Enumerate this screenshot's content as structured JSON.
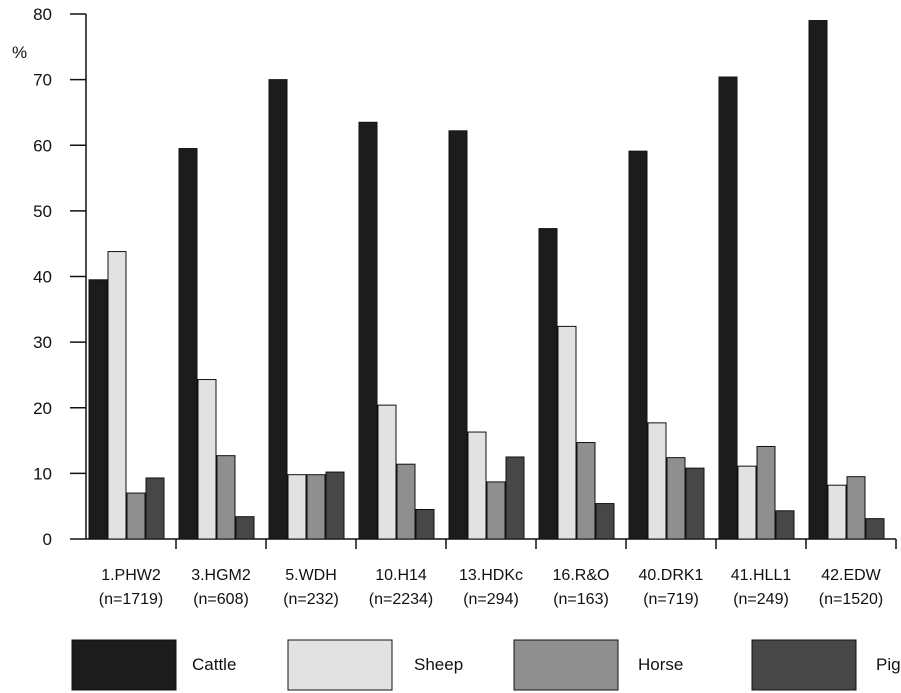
{
  "chart_data": {
    "type": "bar",
    "ylabel": "%",
    "xlabel": "",
    "ylim": [
      0,
      80
    ],
    "yticks": [
      "0",
      "10",
      "20",
      "30",
      "40",
      "50",
      "60",
      "70",
      "80"
    ],
    "categories": [
      {
        "name": "1.PHW2",
        "n": "(n=1719)"
      },
      {
        "name": "3.HGM2",
        "n": "(n=608)"
      },
      {
        "name": "5.WDH",
        "n": "(n=232)"
      },
      {
        "name": "10.H14",
        "n": "(n=2234)"
      },
      {
        "name": "13.HDKc",
        "n": "(n=294)"
      },
      {
        "name": "16.R&O",
        "n": "(n=163)"
      },
      {
        "name": "40.DRK1",
        "n": "(n=719)"
      },
      {
        "name": "41.HLL1",
        "n": "(n=249)"
      },
      {
        "name": "42.EDW",
        "n": "(n=1520)"
      }
    ],
    "series": [
      {
        "name": "Cattle",
        "color": "#1c1c1c",
        "values": [
          39.5,
          59.5,
          70.0,
          63.5,
          62.2,
          47.3,
          59.1,
          70.4,
          79.0
        ]
      },
      {
        "name": "Sheep",
        "color": "#e2e2e2",
        "values": [
          43.8,
          24.3,
          9.8,
          20.4,
          16.3,
          32.4,
          17.7,
          11.1,
          8.2
        ]
      },
      {
        "name": "Horse",
        "color": "#8f8f8f",
        "values": [
          7.0,
          12.7,
          9.8,
          11.4,
          8.7,
          14.7,
          12.4,
          14.1,
          9.5
        ]
      },
      {
        "name": "Pig",
        "color": "#474747",
        "values": [
          9.3,
          3.4,
          10.2,
          4.5,
          12.5,
          5.4,
          10.8,
          4.3,
          3.1
        ]
      }
    ],
    "legend": {
      "position": "bottom"
    },
    "grid": false
  }
}
